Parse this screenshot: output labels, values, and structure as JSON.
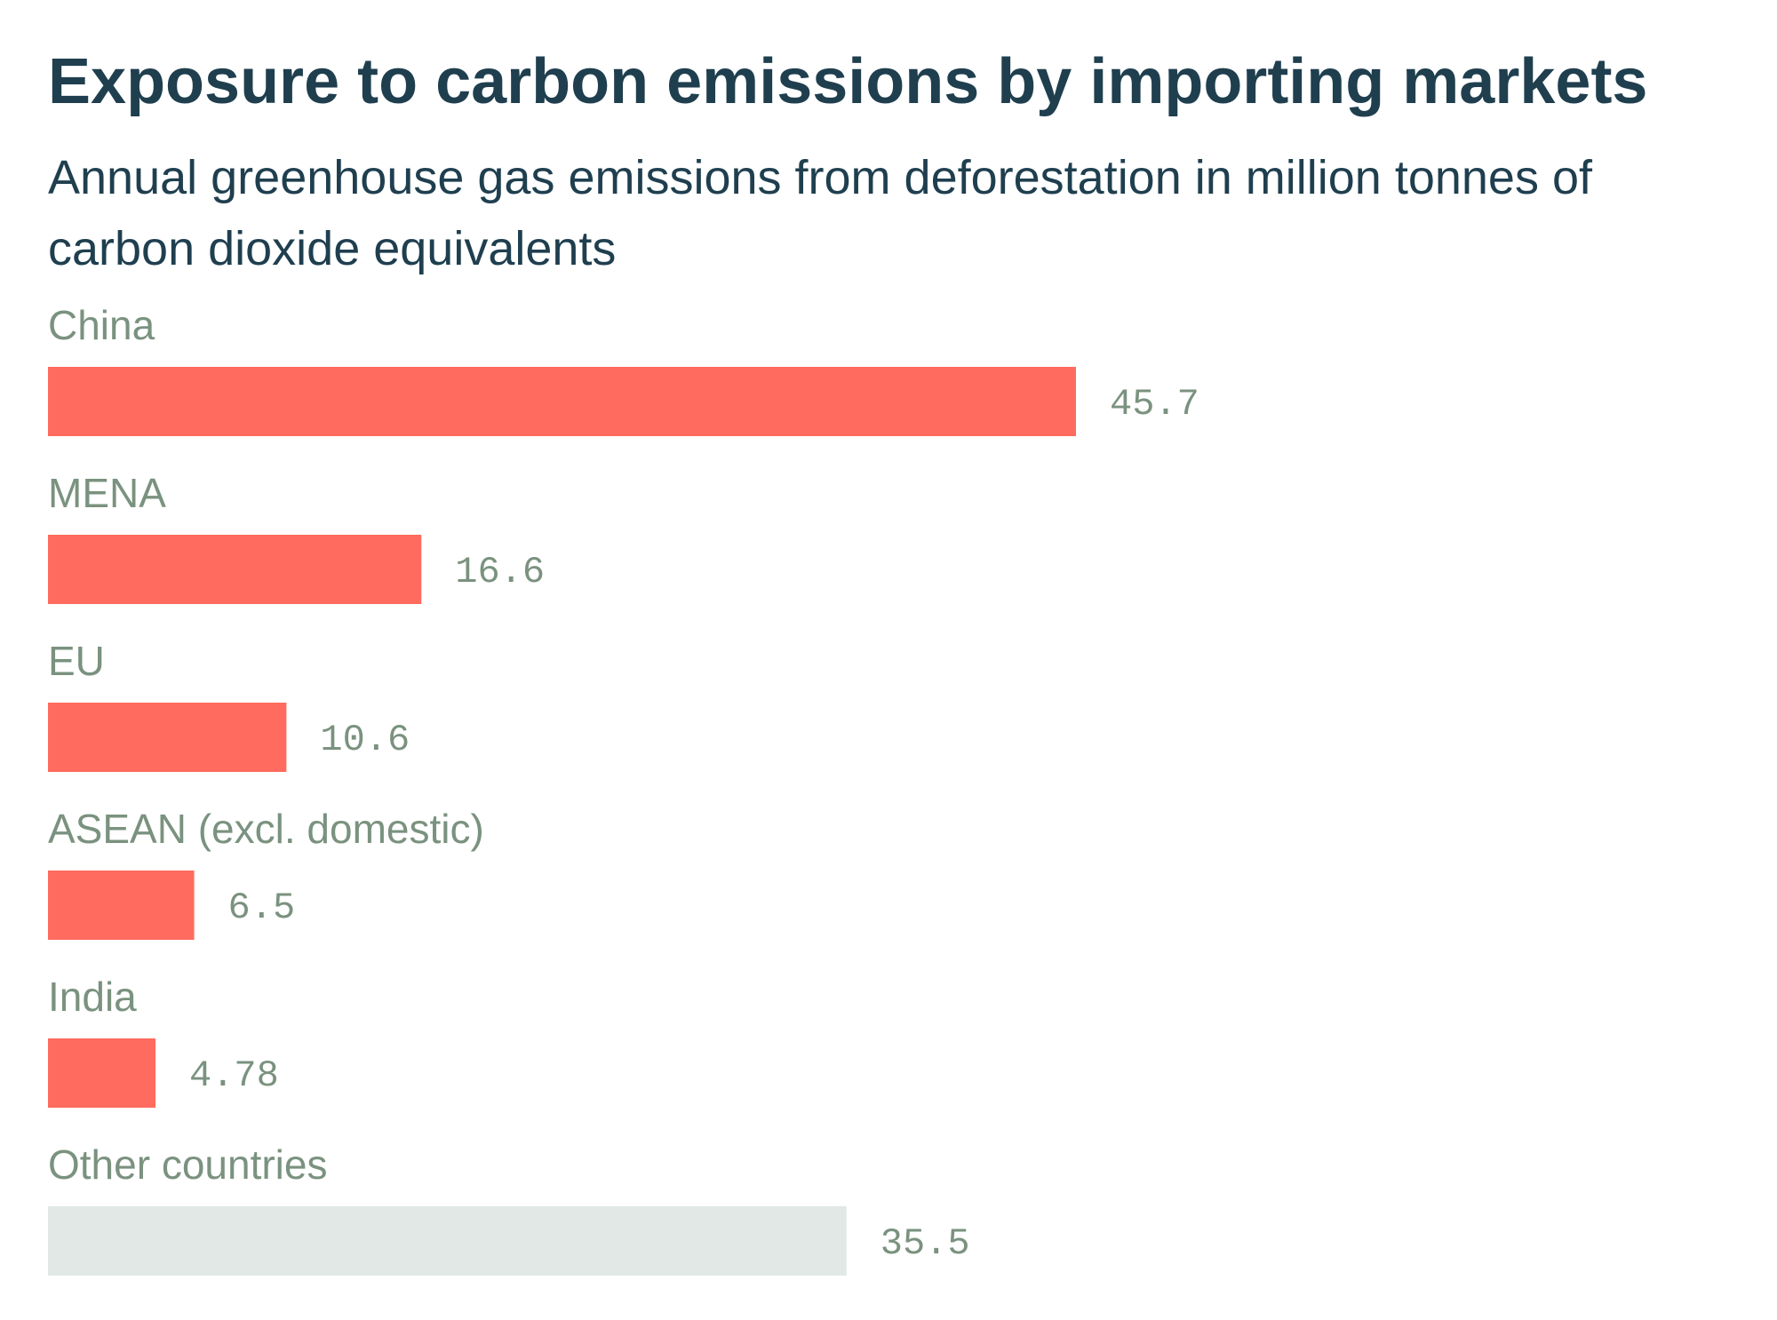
{
  "chart_data": {
    "type": "bar",
    "orientation": "horizontal",
    "title": "Exposure to carbon emissions by importing markets",
    "subtitle": "Annual greenhouse gas emissions from deforestation in million tonnes of carbon dioxide equivalents",
    "categories": [
      "China",
      "MENA",
      "EU",
      "ASEAN (excl. domestic)",
      "India",
      "Other countries"
    ],
    "values": [
      45.7,
      16.6,
      10.6,
      6.5,
      4.78,
      35.5
    ],
    "value_labels": [
      "45.7",
      "16.6",
      "10.6",
      "6.5",
      "4.78",
      "35.5"
    ],
    "bar_colors": [
      "#ff6b5e",
      "#ff6b5e",
      "#ff6b5e",
      "#ff6b5e",
      "#ff6b5e",
      "#e1e8e5"
    ],
    "label_color": "#7a927f",
    "title_color": "#1f3f4f",
    "xlabel": "",
    "ylabel": "",
    "xlim": [
      0,
      45.7
    ],
    "grid": false,
    "legend": "none"
  }
}
